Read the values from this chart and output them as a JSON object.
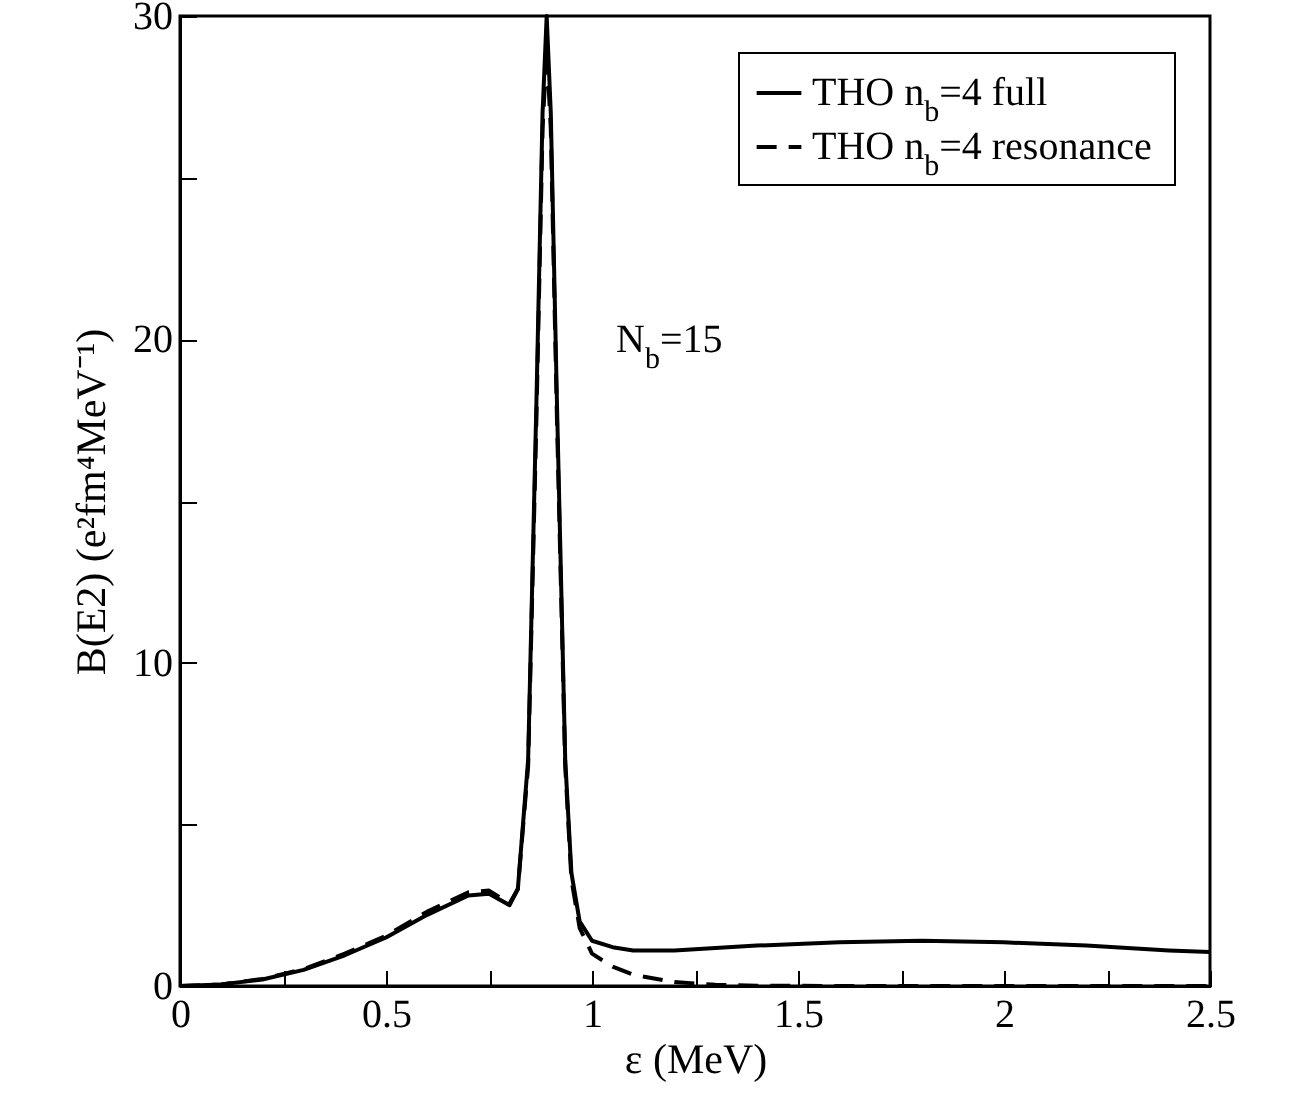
{
  "chart_data": {
    "type": "line",
    "xlabel": "ε (MeV)",
    "ylabel": "B(E2) (e²fm⁴MeV⁻¹)",
    "annotations": [
      "N$_{b}$=15"
    ],
    "xlim": [
      0,
      2.5
    ],
    "ylim": [
      0,
      30
    ],
    "xticks": [
      0,
      {
        "value": 0.25,
        "label": null
      },
      0.5,
      {
        "value": 0.75,
        "label": null
      },
      1,
      {
        "value": 1.25,
        "label": null
      },
      1.5,
      {
        "value": 1.75,
        "label": null
      },
      2,
      {
        "value": 2.25,
        "label": null
      },
      2.5
    ],
    "yticks": [
      0,
      {
        "value": 5,
        "label": null
      },
      10,
      {
        "value": 15,
        "label": null
      },
      20,
      {
        "value": 25,
        "label": null
      },
      30
    ],
    "grid": false,
    "legend": "top right",
    "series": [
      {
        "name": "THO n$_{b}$=4 full",
        "color": "#000000",
        "line_style": "solid",
        "x": [
          0,
          0.1,
          0.2,
          0.3,
          0.4,
          0.5,
          0.6,
          0.7,
          0.75,
          0.8,
          0.82,
          0.845,
          0.865,
          0.88,
          0.89,
          0.9,
          0.915,
          0.935,
          0.95,
          0.97,
          1.0,
          1.05,
          1.1,
          1.2,
          1.4,
          1.6,
          1.8,
          2.0,
          2.2,
          2.4,
          2.5
        ],
        "values": [
          0,
          0.05,
          0.2,
          0.5,
          0.95,
          1.5,
          2.2,
          2.8,
          2.85,
          2.5,
          3.0,
          7,
          18,
          27,
          30,
          27,
          18,
          7,
          3.5,
          2,
          1.4,
          1.2,
          1.1,
          1.1,
          1.25,
          1.35,
          1.4,
          1.35,
          1.25,
          1.1,
          1.05
        ]
      },
      {
        "name": "THO n$_{b}$=4 resonance",
        "color": "#000000",
        "line_style": "dashed",
        "x": [
          0,
          0.1,
          0.2,
          0.3,
          0.4,
          0.5,
          0.6,
          0.7,
          0.75,
          0.8,
          0.82,
          0.845,
          0.865,
          0.88,
          0.89,
          0.9,
          0.915,
          0.935,
          0.95,
          0.97,
          1.0,
          1.05,
          1.1,
          1.2,
          1.3,
          1.4,
          1.6,
          2.0,
          2.5
        ],
        "values": [
          0,
          0.05,
          0.22,
          0.52,
          1.0,
          1.55,
          2.3,
          2.9,
          2.95,
          2.55,
          3.0,
          6.8,
          17.5,
          26.5,
          29,
          26.5,
          17.5,
          6.8,
          3.3,
          1.8,
          1.0,
          0.6,
          0.35,
          0.12,
          0.04,
          0.01,
          0,
          0,
          0
        ]
      }
    ]
  }
}
